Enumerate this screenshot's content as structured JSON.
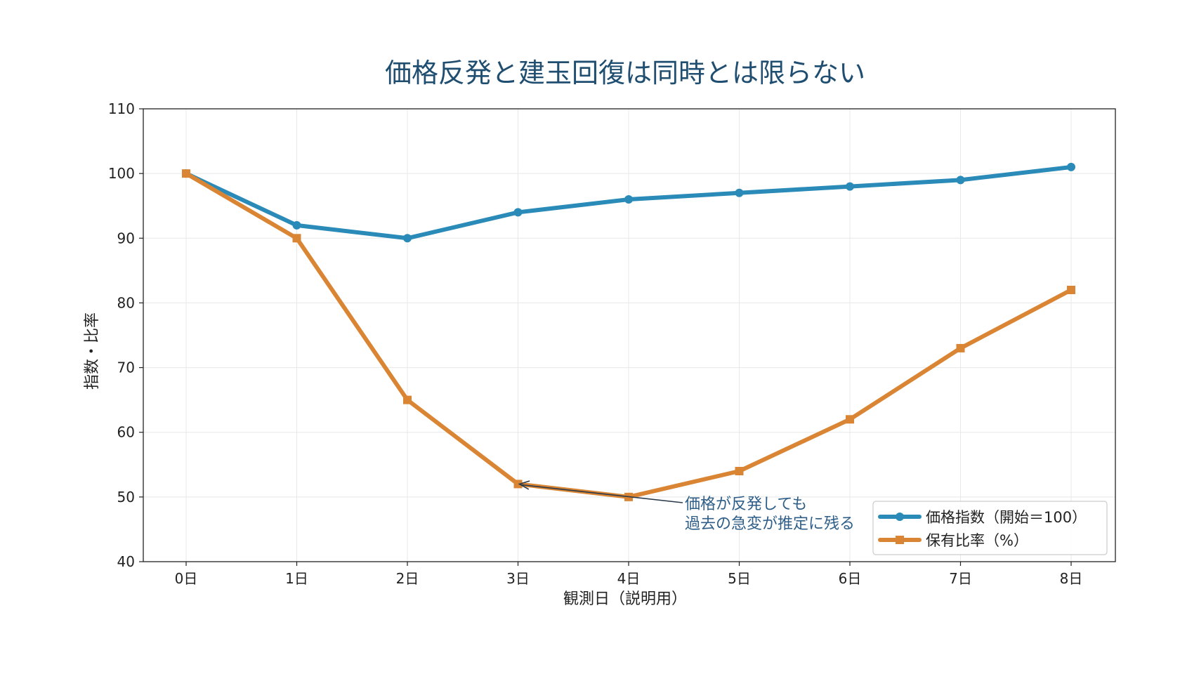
{
  "chart_data": {
    "type": "line",
    "title": "価格反発と建玉回復は同時とは限らない",
    "xlabel": "観測日（説明用）",
    "ylabel": "指数・比率",
    "categories": [
      "0日",
      "1日",
      "2日",
      "3日",
      "4日",
      "5日",
      "6日",
      "7日",
      "8日"
    ],
    "ylim": [
      40,
      110
    ],
    "yticks": [
      40,
      50,
      60,
      70,
      80,
      90,
      100,
      110
    ],
    "grid": true,
    "legend_position": "bottom-right",
    "series": [
      {
        "name": "価格指数（開始＝100）",
        "values": [
          100,
          92,
          90,
          94,
          96,
          97,
          98,
          99,
          101
        ],
        "color": "#2a8ab8",
        "marker": "circle"
      },
      {
        "name": "保有比率（%）",
        "values": [
          100,
          90,
          65,
          52,
          50,
          54,
          62,
          73,
          82
        ],
        "color": "#d98534",
        "marker": "square"
      }
    ],
    "annotation": {
      "lines": [
        "価格が反発しても",
        "過去の急変が推定に残る"
      ],
      "target_category": "3日",
      "target_value": 52,
      "color": "#2f5f88"
    }
  }
}
